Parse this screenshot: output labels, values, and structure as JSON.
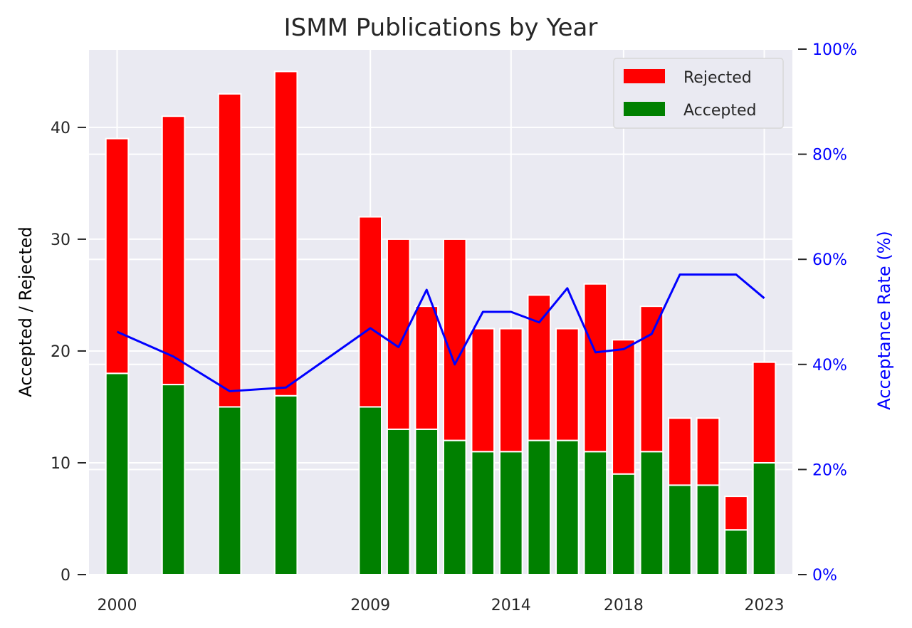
{
  "chart_data": {
    "type": "bar",
    "title": "ISMM Publications by Year",
    "xlabel": "",
    "ylabel": "Accepted / Rejected",
    "ylabel_right": "Acceptance Rate (%)",
    "stacked": true,
    "x": [
      2000,
      2002,
      2004,
      2006,
      2009,
      2010,
      2011,
      2012,
      2013,
      2014,
      2015,
      2016,
      2017,
      2018,
      2019,
      2020,
      2021,
      2022,
      2023
    ],
    "x_ticks": [
      2000,
      2009,
      2014,
      2018,
      2023
    ],
    "x_tick_labels": [
      "2000",
      "2009",
      "2014",
      "2018",
      "2023"
    ],
    "xlim": [
      1999.0,
      2024.0
    ],
    "ylim": [
      0,
      47
    ],
    "y_ticks": [
      0,
      10,
      20,
      30,
      40
    ],
    "y_tick_labels": [
      "0",
      "10",
      "20",
      "30",
      "40"
    ],
    "y2lim": [
      0,
      100
    ],
    "y2_ticks": [
      0,
      20,
      40,
      60,
      80,
      100
    ],
    "y2_tick_labels": [
      "0%",
      "20%",
      "40%",
      "60%",
      "80%",
      "100%"
    ],
    "series": [
      {
        "name": "Accepted",
        "kind": "bar",
        "color": "#008000",
        "values": [
          18,
          17,
          15,
          16,
          15,
          13,
          13,
          12,
          11,
          11,
          12,
          12,
          11,
          9,
          11,
          8,
          8,
          4,
          10
        ]
      },
      {
        "name": "Rejected",
        "kind": "bar",
        "color": "#ff0000",
        "values": [
          21,
          24,
          28,
          29,
          17,
          17,
          11,
          18,
          11,
          11,
          13,
          10,
          15,
          12,
          13,
          6,
          6,
          3,
          9
        ]
      },
      {
        "name": "Acceptance Rate",
        "kind": "line",
        "axis": "right",
        "color": "#0000ff",
        "values": [
          46.2,
          41.5,
          34.9,
          35.6,
          46.9,
          43.3,
          54.2,
          40.0,
          50.0,
          50.0,
          48.0,
          54.5,
          42.3,
          42.9,
          45.8,
          57.1,
          57.1,
          57.1,
          52.6
        ]
      }
    ],
    "legend": {
      "entries": [
        "Rejected",
        "Accepted"
      ],
      "placement": "top-right"
    },
    "grid": true,
    "background": "#eaeaf2",
    "right_axis_color": "#0000ff"
  }
}
